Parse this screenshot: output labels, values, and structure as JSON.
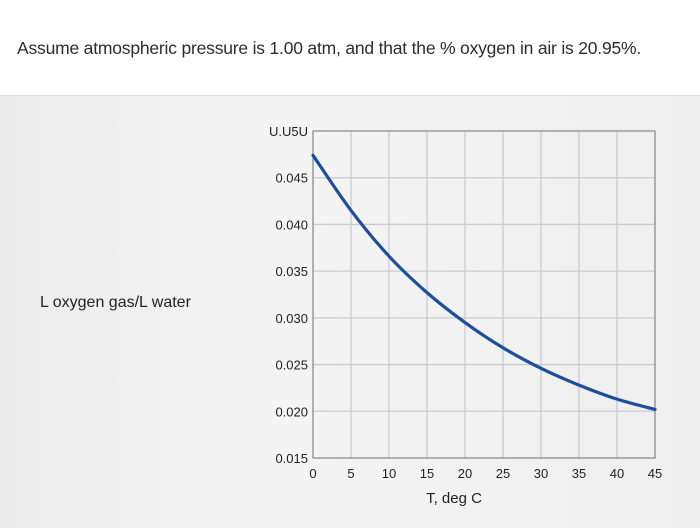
{
  "question": {
    "text": "Assume atmospheric pressure is 1.00 atm, and that the % oxygen in air is 20.95%."
  },
  "chart_data": {
    "type": "line",
    "title": "",
    "ylabel": "L oxygen gas/L water",
    "xlabel": "T, deg C",
    "x_ticks": [
      "0",
      "5",
      "10",
      "15",
      "20",
      "25",
      "30",
      "35",
      "40",
      "45"
    ],
    "y_ticks": [
      "0.015",
      "0.020",
      "0.025",
      "0.030",
      "0.035",
      "0.040",
      "0.045",
      "0.050"
    ],
    "y_ticks_shown": [
      "U.U5U",
      "0.045",
      "0.040",
      "0.035",
      "0.030",
      "0.025",
      "0.020",
      "0.015"
    ],
    "xlim": [
      0,
      45
    ],
    "ylim": [
      0.015,
      0.05
    ],
    "grid": true,
    "series": [
      {
        "name": "",
        "color": "#1f4e99",
        "x": [
          0,
          5,
          10,
          15,
          20,
          25,
          30,
          35,
          40,
          45
        ],
        "y": [
          0.0474,
          0.0415,
          0.0366,
          0.0327,
          0.0295,
          0.0268,
          0.0246,
          0.0228,
          0.0213,
          0.0202
        ]
      }
    ]
  }
}
